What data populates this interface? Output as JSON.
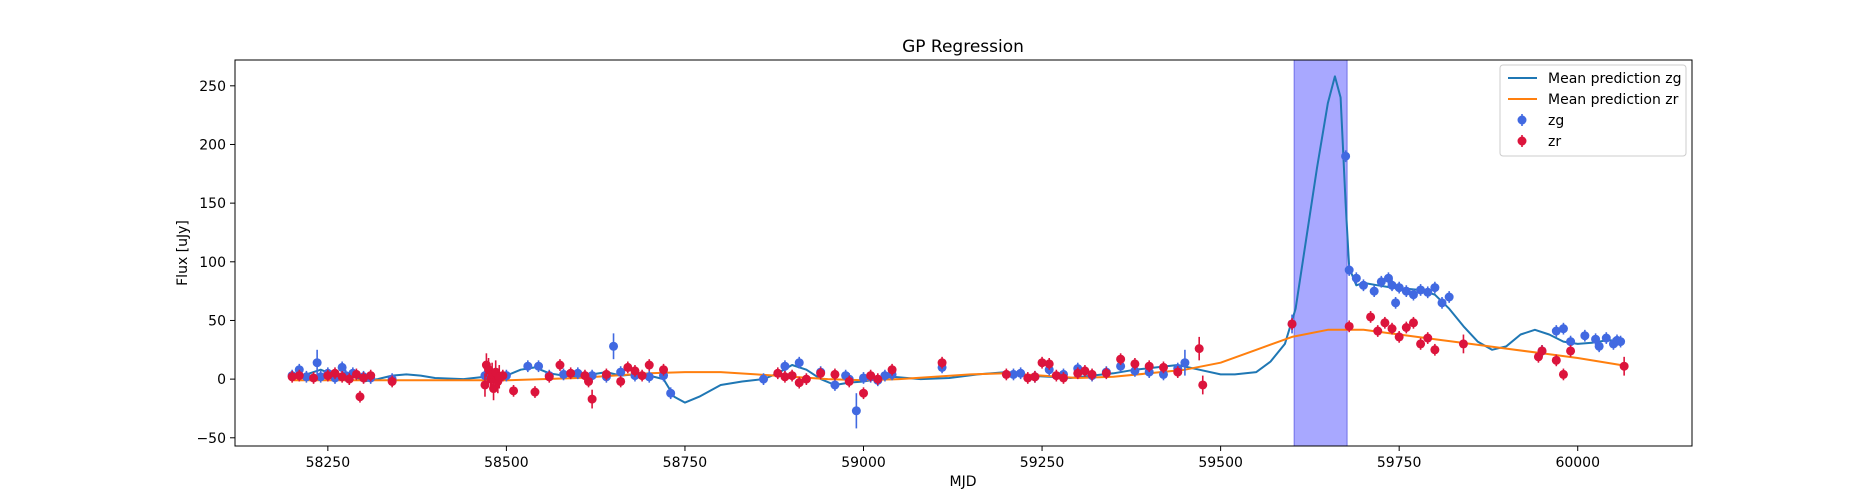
{
  "chart_data": {
    "type": "scatter",
    "title": "GP Regression",
    "xlabel": "MJD",
    "ylabel": "Flux [uJy]",
    "xlim": [
      58120,
      60160
    ],
    "ylim": [
      -57,
      272
    ],
    "xticks": [
      58250,
      58500,
      58750,
      59000,
      59250,
      59500,
      59750,
      60000
    ],
    "yticks": [
      -50,
      0,
      50,
      100,
      150,
      200,
      250
    ],
    "grid": false,
    "legend_position": "top-right",
    "highlight_span": {
      "x0": 59603,
      "x1": 59677,
      "color": "#a8a8ff"
    },
    "legend": [
      {
        "label": "Mean prediction zg",
        "kind": "line",
        "color": "#1f77b4"
      },
      {
        "label": "Mean prediction zr",
        "kind": "line",
        "color": "#ff7f0e"
      },
      {
        "label": "zg",
        "kind": "marker",
        "color": "#4169e1"
      },
      {
        "label": "zr",
        "kind": "marker",
        "color": "#dc143c"
      }
    ],
    "series": [
      {
        "name": "Mean prediction zg",
        "kind": "line",
        "color": "#1f77b4",
        "x": [
          58200,
          58220,
          58240,
          58260,
          58280,
          58300,
          58320,
          58340,
          58360,
          58380,
          58400,
          58440,
          58470,
          58500,
          58520,
          58540,
          58560,
          58580,
          58600,
          58620,
          58640,
          58660,
          58680,
          58700,
          58720,
          58735,
          58750,
          58770,
          58800,
          58830,
          58860,
          58880,
          58900,
          58920,
          58940,
          58960,
          58980,
          59000,
          59020,
          59040,
          59080,
          59120,
          59160,
          59200,
          59230,
          59260,
          59290,
          59320,
          59350,
          59380,
          59410,
          59440,
          59470,
          59500,
          59520,
          59550,
          59570,
          59590,
          59605,
          59620,
          59635,
          59650,
          59660,
          59668,
          59675,
          59680,
          59690,
          59700,
          59720,
          59740,
          59760,
          59780,
          59800,
          59820,
          59840,
          59860,
          59880,
          59900,
          59920,
          59940,
          59960,
          59980,
          60000,
          60020,
          60040,
          60060
        ],
        "y": [
          2,
          4,
          8,
          3,
          5,
          -2,
          0,
          3,
          4,
          3,
          1,
          0,
          2,
          3,
          8,
          10,
          5,
          3,
          2,
          4,
          6,
          3,
          4,
          3,
          0,
          -15,
          -20,
          -15,
          -5,
          -2,
          0,
          5,
          12,
          8,
          0,
          -5,
          -3,
          -2,
          0,
          2,
          0,
          1,
          4,
          6,
          3,
          2,
          1,
          3,
          5,
          8,
          10,
          12,
          8,
          4,
          4,
          6,
          15,
          30,
          60,
          120,
          180,
          235,
          258,
          240,
          150,
          95,
          80,
          82,
          80,
          78,
          77,
          76,
          72,
          60,
          45,
          32,
          25,
          28,
          38,
          42,
          38,
          32,
          30,
          31,
          33,
          33
        ]
      },
      {
        "name": "Mean prediction zr",
        "kind": "line",
        "color": "#ff7f0e",
        "x": [
          58200,
          58300,
          58400,
          58500,
          58600,
          58650,
          58700,
          58750,
          58800,
          58850,
          58900,
          58950,
          59000,
          59050,
          59100,
          59150,
          59200,
          59250,
          59300,
          59350,
          59400,
          59450,
          59500,
          59550,
          59600,
          59650,
          59700,
          59750,
          59800,
          59850,
          59900,
          59950,
          60000,
          60060
        ],
        "y": [
          -1,
          -1,
          -1,
          -1,
          1,
          3,
          5,
          6,
          6,
          4,
          2,
          0,
          -1,
          0,
          2,
          4,
          5,
          3,
          1,
          2,
          5,
          8,
          14,
          25,
          36,
          42,
          42,
          38,
          34,
          30,
          26,
          22,
          18,
          12
        ]
      },
      {
        "name": "zg",
        "kind": "errorbar",
        "color": "#4169e1",
        "x": [
          58200,
          58210,
          58220,
          58235,
          58240,
          58250,
          58260,
          58270,
          58275,
          58285,
          58300,
          58310,
          58340,
          58470,
          58480,
          58490,
          58500,
          58530,
          58545,
          58560,
          58580,
          58600,
          58620,
          58640,
          58650,
          58660,
          58680,
          58700,
          58720,
          58730,
          58860,
          58890,
          58910,
          58940,
          58960,
          58975,
          58980,
          58990,
          59000,
          59010,
          59020,
          59030,
          59040,
          59110,
          59210,
          59220,
          59240,
          59260,
          59280,
          59300,
          59320,
          59340,
          59360,
          59380,
          59400,
          59420,
          59440,
          59450,
          59600,
          59675,
          59680,
          59690,
          59700,
          59715,
          59725,
          59735,
          59740,
          59745,
          59750,
          59760,
          59770,
          59780,
          59790,
          59800,
          59810,
          59820,
          59950,
          59970,
          59980,
          59990,
          60010,
          60025,
          60030,
          60040,
          60050,
          60055,
          60060
        ],
        "y": [
          3,
          8,
          2,
          14,
          2,
          5,
          1,
          10,
          3,
          5,
          2,
          1,
          0,
          3,
          5,
          1,
          3,
          11,
          11,
          3,
          4,
          5,
          3,
          2,
          28,
          6,
          3,
          2,
          3,
          -12,
          0,
          11,
          14,
          6,
          -5,
          3,
          0,
          -27,
          1,
          2,
          -1,
          3,
          4,
          10,
          4,
          5,
          2,
          8,
          4,
          9,
          3,
          6,
          11,
          7,
          6,
          4,
          9,
          14,
          47,
          190,
          93,
          86,
          80,
          75,
          83,
          86,
          80,
          65,
          78,
          75,
          72,
          76,
          74,
          78,
          65,
          70,
          24,
          41,
          43,
          32,
          37,
          34,
          28,
          35,
          30,
          33,
          32
        ],
        "yerr": [
          5,
          5,
          5,
          11,
          5,
          5,
          5,
          5,
          5,
          5,
          5,
          5,
          5,
          5,
          5,
          5,
          5,
          5,
          5,
          5,
          5,
          5,
          5,
          5,
          11,
          5,
          5,
          5,
          5,
          5,
          5,
          5,
          5,
          5,
          5,
          5,
          5,
          15,
          5,
          5,
          5,
          5,
          5,
          5,
          5,
          5,
          5,
          5,
          5,
          5,
          5,
          5,
          5,
          5,
          5,
          5,
          5,
          11,
          8,
          5,
          5,
          5,
          5,
          5,
          5,
          5,
          5,
          5,
          5,
          5,
          5,
          5,
          5,
          5,
          5,
          5,
          5,
          5,
          5,
          5,
          5,
          5,
          5,
          5,
          5,
          5,
          5
        ]
      },
      {
        "name": "zr",
        "kind": "errorbar",
        "color": "#dc143c",
        "x": [
          58200,
          58210,
          58230,
          58250,
          58260,
          58270,
          58280,
          58290,
          58295,
          58300,
          58310,
          58340,
          58470,
          58472,
          58475,
          58478,
          58480,
          58482,
          58485,
          58488,
          58490,
          58495,
          58510,
          58540,
          58560,
          58575,
          58590,
          58610,
          58615,
          58620,
          58640,
          58660,
          58670,
          58680,
          58690,
          58700,
          58720,
          58880,
          58890,
          58900,
          58910,
          58920,
          58940,
          58960,
          58980,
          59000,
          59010,
          59020,
          59040,
          59110,
          59200,
          59230,
          59240,
          59250,
          59260,
          59270,
          59280,
          59300,
          59310,
          59320,
          59340,
          59360,
          59380,
          59400,
          59420,
          59440,
          59470,
          59475,
          59600,
          59680,
          59710,
          59720,
          59730,
          59740,
          59750,
          59760,
          59770,
          59780,
          59790,
          59800,
          59840,
          59945,
          59950,
          59970,
          59980,
          59990,
          60065
        ],
        "y": [
          2,
          3,
          1,
          3,
          5,
          2,
          0,
          4,
          -15,
          1,
          3,
          -2,
          -5,
          12,
          8,
          0,
          4,
          -8,
          6,
          -2,
          2,
          3,
          -10,
          -11,
          2,
          12,
          5,
          3,
          -2,
          -17,
          4,
          -2,
          10,
          7,
          3,
          12,
          8,
          5,
          2,
          3,
          -3,
          0,
          5,
          4,
          -2,
          -12,
          3,
          0,
          8,
          14,
          4,
          1,
          2,
          14,
          13,
          3,
          1,
          5,
          7,
          4,
          5,
          17,
          13,
          11,
          10,
          6,
          26,
          -5,
          47,
          45,
          53,
          41,
          48,
          43,
          36,
          44,
          48,
          30,
          35,
          25,
          30,
          19,
          24,
          16,
          4,
          24,
          11
        ],
        "yerr": [
          5,
          5,
          5,
          5,
          5,
          5,
          5,
          5,
          5,
          5,
          5,
          5,
          10,
          10,
          10,
          10,
          10,
          10,
          10,
          10,
          10,
          5,
          5,
          5,
          5,
          5,
          5,
          5,
          5,
          8,
          5,
          5,
          5,
          5,
          5,
          5,
          5,
          5,
          5,
          5,
          5,
          5,
          5,
          5,
          5,
          5,
          5,
          5,
          5,
          5,
          5,
          5,
          5,
          5,
          5,
          5,
          5,
          5,
          5,
          5,
          5,
          5,
          5,
          5,
          5,
          5,
          10,
          8,
          5,
          5,
          5,
          5,
          5,
          5,
          5,
          5,
          5,
          5,
          5,
          5,
          8,
          5,
          5,
          5,
          5,
          5,
          8
        ]
      }
    ]
  }
}
